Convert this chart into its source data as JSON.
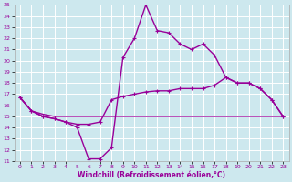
{
  "xlabel": "Windchill (Refroidissement éolien,°C)",
  "xlim": [
    -0.5,
    23.5
  ],
  "ylim": [
    11,
    25
  ],
  "xticks": [
    0,
    1,
    2,
    3,
    4,
    5,
    6,
    7,
    8,
    9,
    10,
    11,
    12,
    13,
    14,
    15,
    16,
    17,
    18,
    19,
    20,
    21,
    22,
    23
  ],
  "yticks": [
    11,
    12,
    13,
    14,
    15,
    16,
    17,
    18,
    19,
    20,
    21,
    22,
    23,
    24,
    25
  ],
  "bg_color": "#cde8ee",
  "grid_color": "#ffffff",
  "line_color": "#990099",
  "curve1_x": [
    0,
    1,
    2,
    3,
    4,
    5,
    6,
    7,
    8,
    9,
    10,
    11,
    12,
    13,
    14,
    15,
    16,
    17,
    18,
    19,
    20,
    21,
    22,
    23
  ],
  "curve1_y": [
    16.7,
    15.5,
    15.0,
    14.8,
    14.5,
    14.0,
    11.2,
    11.2,
    12.2,
    20.3,
    22.0,
    25.0,
    22.7,
    22.5,
    21.5,
    21.0,
    21.5,
    20.5,
    18.5,
    18.0,
    18.0,
    17.5,
    16.5,
    15.0
  ],
  "curve2_x": [
    0,
    1,
    2,
    3,
    4,
    5,
    6,
    7,
    8,
    9,
    10,
    11,
    12,
    13,
    14,
    15,
    16,
    17,
    18,
    19,
    20,
    21,
    22,
    23
  ],
  "curve2_y": [
    16.7,
    15.5,
    15.0,
    14.8,
    14.5,
    14.3,
    14.3,
    14.5,
    16.5,
    16.8,
    17.0,
    17.2,
    17.3,
    17.3,
    17.5,
    17.5,
    17.5,
    17.8,
    18.5,
    18.0,
    18.0,
    17.5,
    16.5,
    15.0
  ],
  "curve3_x": [
    0,
    1,
    2,
    3,
    4,
    5,
    6,
    7,
    8,
    9,
    10,
    11,
    12,
    13,
    14,
    15,
    16,
    17,
    18,
    19,
    20,
    21,
    22,
    23
  ],
  "curve3_y": [
    16.7,
    15.5,
    15.2,
    15.0,
    15.0,
    15.0,
    15.0,
    15.0,
    15.0,
    15.0,
    15.0,
    15.0,
    15.0,
    15.0,
    15.0,
    15.0,
    15.0,
    15.0,
    15.0,
    15.0,
    15.0,
    15.0,
    15.0,
    15.0
  ]
}
